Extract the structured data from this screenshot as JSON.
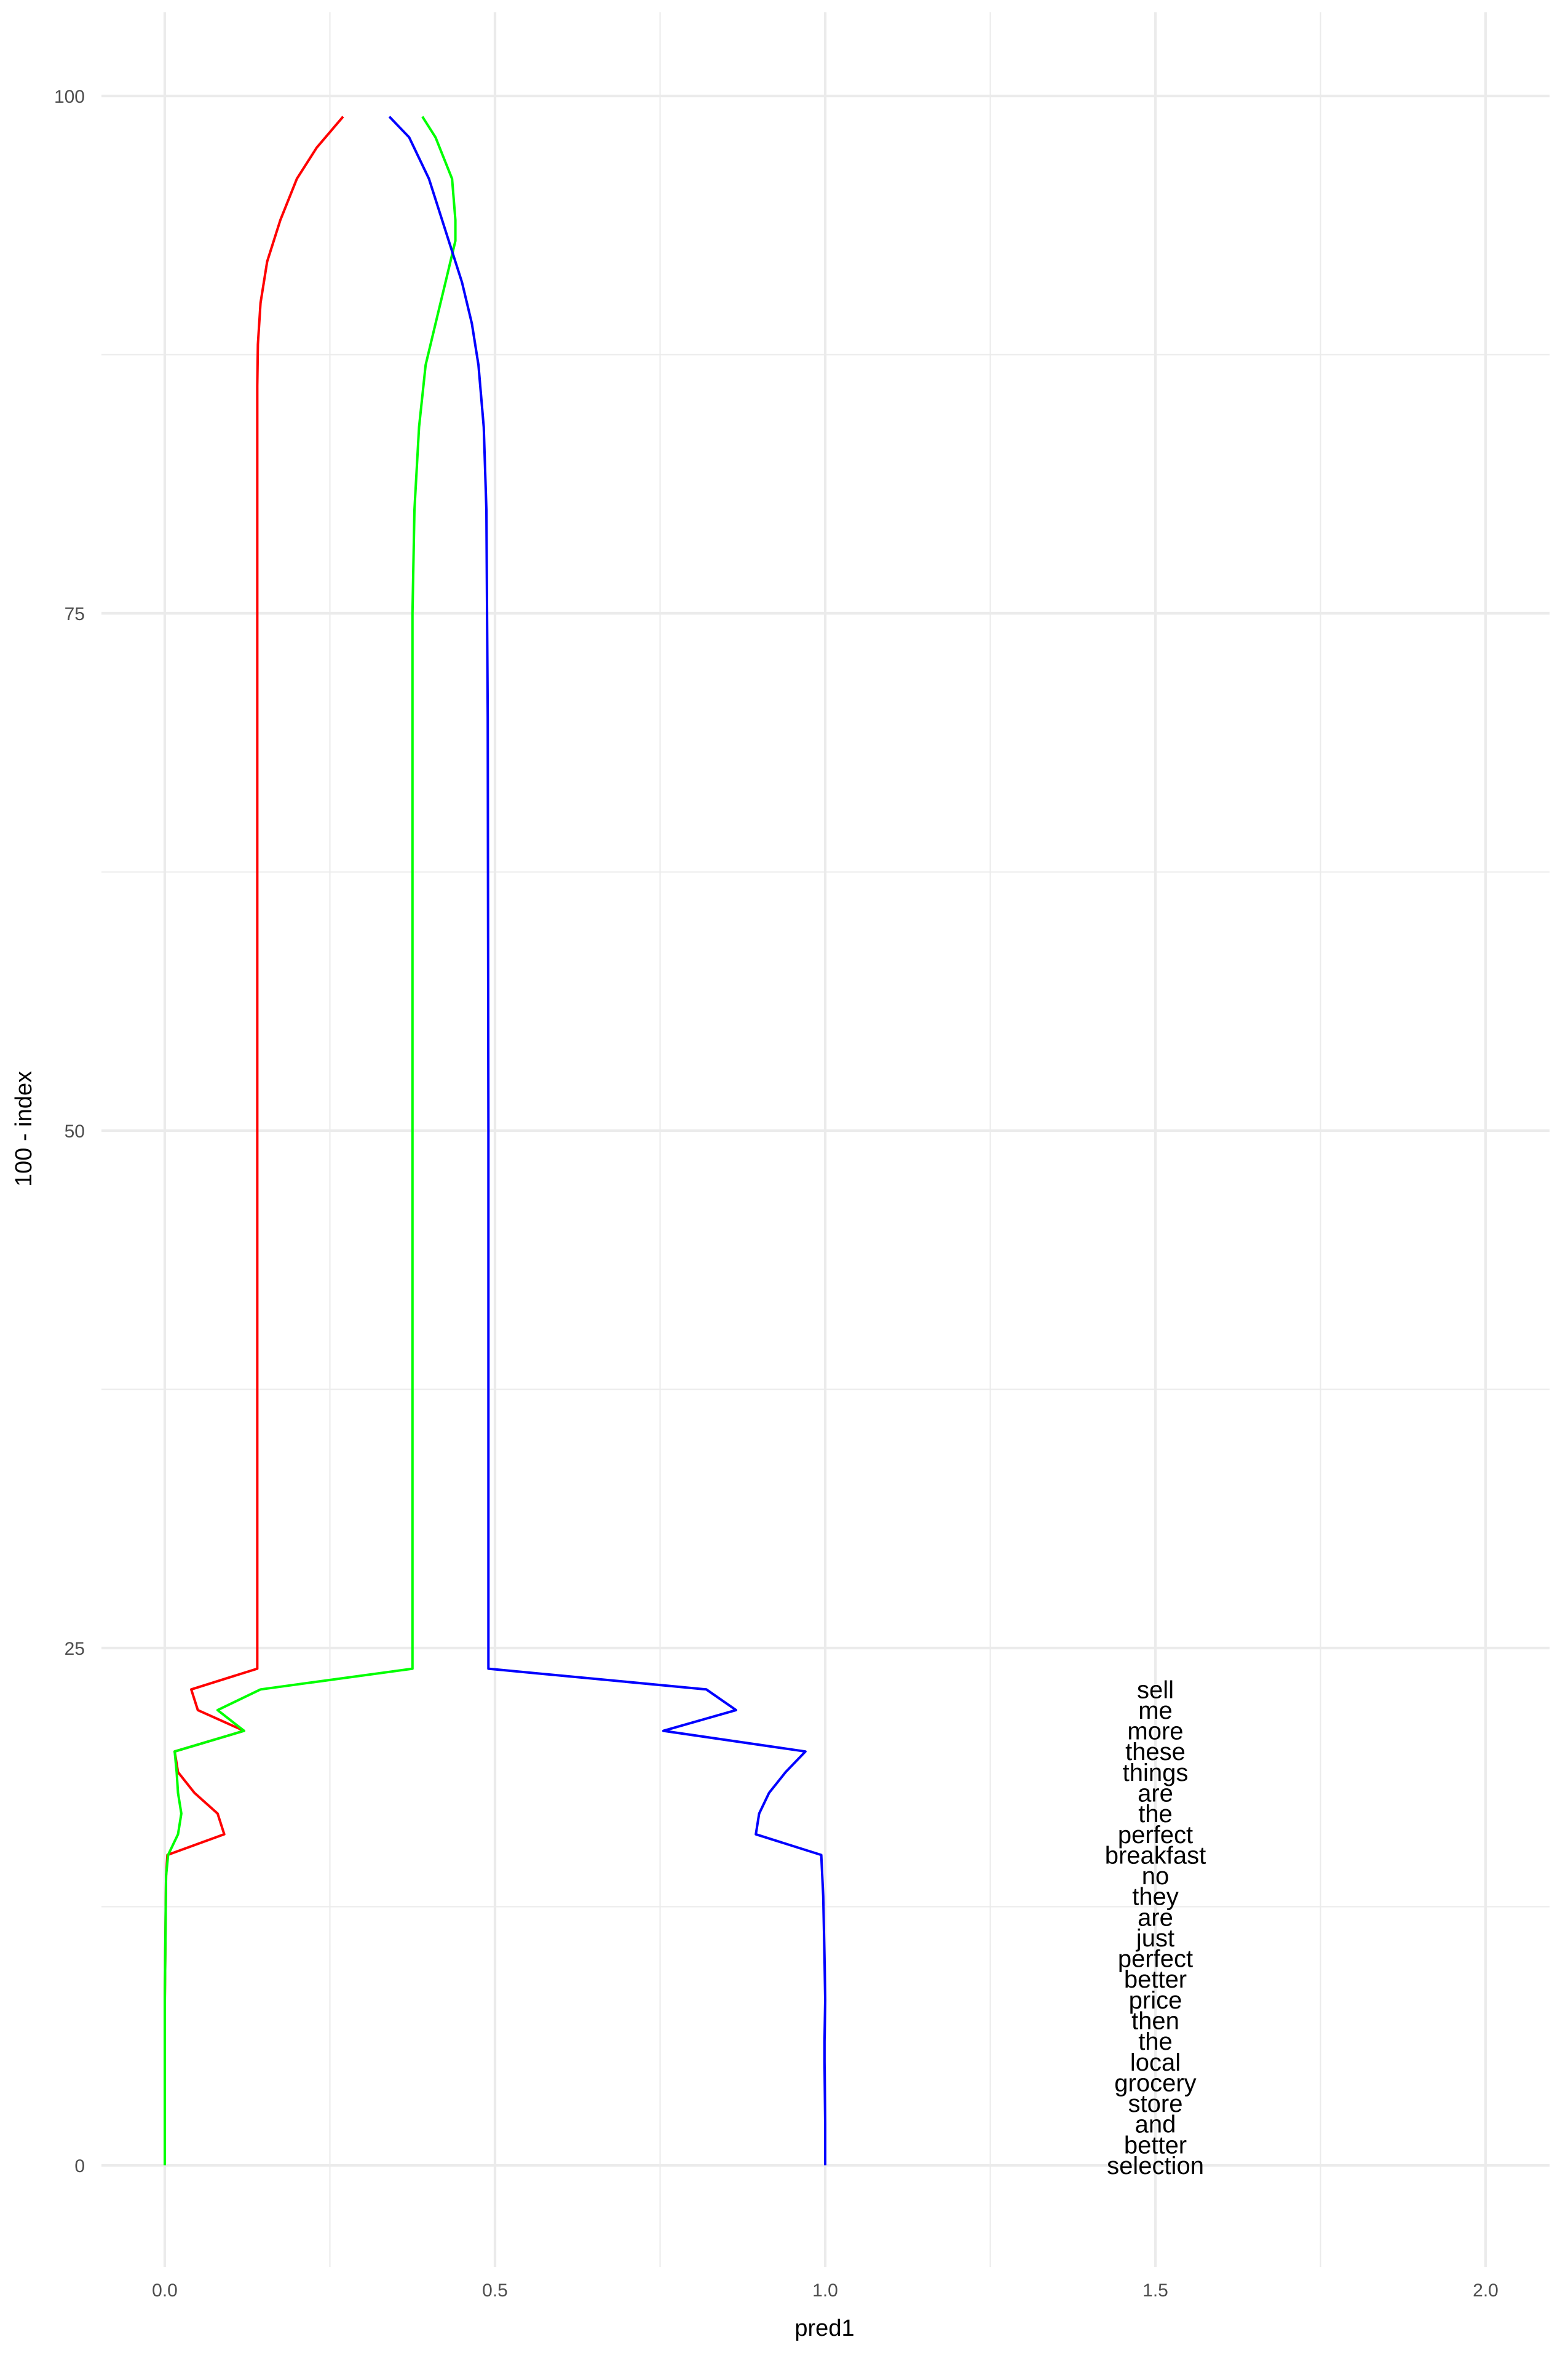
{
  "chart_data": {
    "type": "line",
    "xlabel": "pred1",
    "ylabel": "100 - index",
    "xlim": [
      -0.08,
      2.1
    ],
    "ylim": [
      -5,
      104
    ],
    "x_ticks": [
      0.0,
      0.5,
      1.0,
      1.5,
      2.0
    ],
    "x_tick_labels": [
      "0.0",
      "0.5",
      "1.0",
      "1.5",
      "2.0"
    ],
    "y_ticks": [
      0,
      25,
      50,
      75,
      100
    ],
    "y_tick_labels": [
      "0",
      "25",
      "50",
      "75",
      "100"
    ],
    "grid": true,
    "legend": "none",
    "series": [
      {
        "color": "#ff0000",
        "points": [
          [
            0,
            0
          ],
          [
            0,
            8
          ],
          [
            0.002,
            14
          ],
          [
            0.004,
            15
          ],
          [
            0.09,
            16
          ],
          [
            0.08,
            17
          ],
          [
            0.045,
            18
          ],
          [
            0.02,
            19
          ],
          [
            0.015,
            20
          ],
          [
            0.12,
            21
          ],
          [
            0.05,
            22
          ],
          [
            0.04,
            23
          ],
          [
            0.14,
            24
          ],
          [
            0.14,
            30
          ],
          [
            0.14,
            60
          ],
          [
            0.14,
            84
          ],
          [
            0.14,
            86
          ],
          [
            0.141,
            88
          ],
          [
            0.145,
            90
          ],
          [
            0.155,
            92
          ],
          [
            0.175,
            94
          ],
          [
            0.2,
            96
          ],
          [
            0.23,
            97.5
          ],
          [
            0.27,
            99
          ]
        ]
      },
      {
        "color": "#00ff00",
        "points": [
          [
            0,
            0
          ],
          [
            0,
            8
          ],
          [
            0.002,
            14
          ],
          [
            0.005,
            15
          ],
          [
            0.02,
            16
          ],
          [
            0.025,
            17
          ],
          [
            0.02,
            18
          ],
          [
            0.018,
            19
          ],
          [
            0.015,
            20
          ],
          [
            0.12,
            21
          ],
          [
            0.08,
            22
          ],
          [
            0.145,
            23
          ],
          [
            0.375,
            24
          ],
          [
            0.375,
            50
          ],
          [
            0.375,
            75
          ],
          [
            0.378,
            80
          ],
          [
            0.385,
            84
          ],
          [
            0.395,
            87
          ],
          [
            0.41,
            89
          ],
          [
            0.425,
            91
          ],
          [
            0.44,
            93
          ],
          [
            0.44,
            94
          ],
          [
            0.435,
            96
          ],
          [
            0.41,
            98
          ],
          [
            0.39,
            99
          ]
        ]
      },
      {
        "color": "#0000ff",
        "points": [
          [
            1.0,
            0
          ],
          [
            1.0,
            2
          ],
          [
            0.999,
            5
          ],
          [
            0.999,
            6
          ],
          [
            1.0,
            8
          ],
          [
            0.999,
            10
          ],
          [
            0.997,
            13
          ],
          [
            0.994,
            15
          ],
          [
            0.895,
            16
          ],
          [
            0.9,
            17
          ],
          [
            0.915,
            18
          ],
          [
            0.94,
            19
          ],
          [
            0.97,
            20
          ],
          [
            0.755,
            21
          ],
          [
            0.865,
            22
          ],
          [
            0.82,
            23
          ],
          [
            0.49,
            24
          ],
          [
            0.49,
            50
          ],
          [
            0.489,
            70
          ],
          [
            0.487,
            80
          ],
          [
            0.483,
            84
          ],
          [
            0.475,
            87
          ],
          [
            0.465,
            89
          ],
          [
            0.45,
            91
          ],
          [
            0.43,
            93
          ],
          [
            0.4,
            96
          ],
          [
            0.37,
            98
          ],
          [
            0.34,
            99
          ]
        ]
      }
    ],
    "word_labels": {
      "x": 1.5,
      "y_start": 23,
      "y_step": 1,
      "words": [
        "sell",
        "me",
        "more",
        "these",
        "things",
        "are",
        "the",
        "perfect",
        "breakfast",
        "no",
        "they",
        "are",
        "just",
        "perfect",
        "better",
        "price",
        "then",
        "the",
        "local",
        "grocery",
        "store",
        "and",
        "better",
        "selection"
      ]
    }
  }
}
